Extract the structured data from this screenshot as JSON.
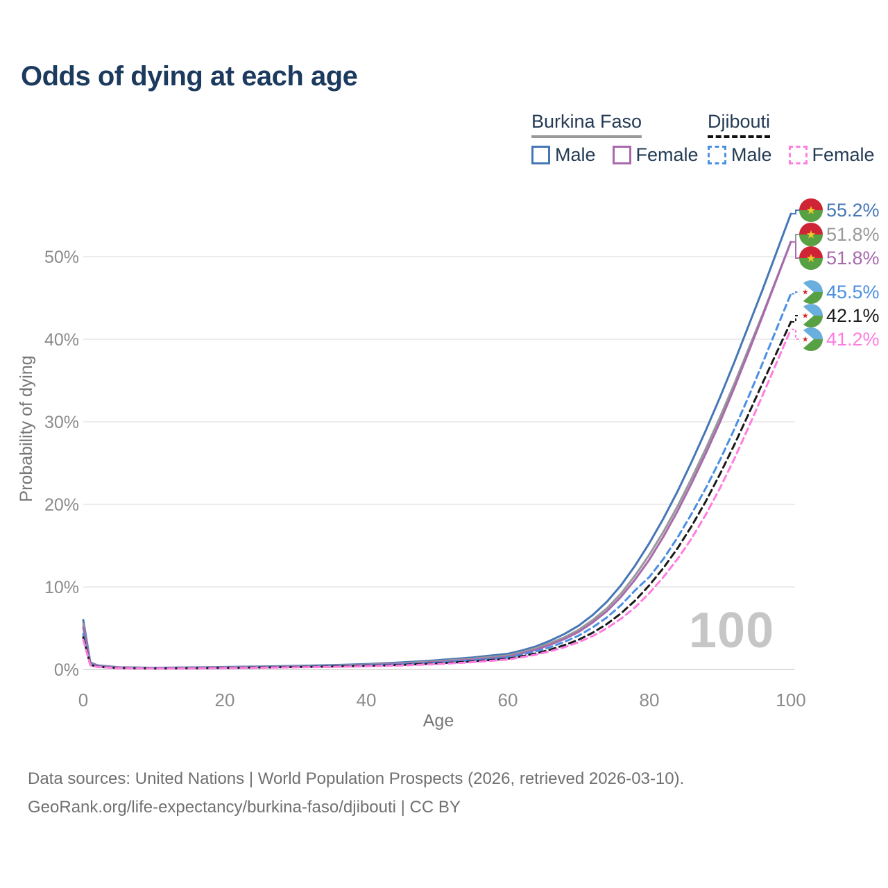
{
  "title": "Odds of dying at each age",
  "watermark_age": "100",
  "legend": {
    "groups": [
      {
        "label": "Burkina Faso",
        "line_style": "solid",
        "line_color": "#999999",
        "items": [
          {
            "label": "Male",
            "color": "#4576b5",
            "dash": false
          },
          {
            "label": "Female",
            "color": "#a869ad",
            "dash": false
          }
        ]
      },
      {
        "label": "Djibouti",
        "line_style": "dashed",
        "line_color": "#111111",
        "items": [
          {
            "label": "Male",
            "color": "#4a8fe2",
            "dash": true
          },
          {
            "label": "Female",
            "color": "#ff7ce0",
            "dash": true
          }
        ]
      }
    ]
  },
  "footer": {
    "line1": "Data sources: United Nations | World Population Prospects (2026, retrieved 2026-03-10).",
    "line2": "GeoRank.org/life-expectancy/burkina-faso/djibouti | CC BY"
  },
  "flags": {
    "burkina_faso": {
      "red": "#cf2436",
      "green": "#58a044",
      "star": "#f5c829"
    },
    "djibouti": {
      "blue": "#6aaede",
      "green": "#58a044",
      "triangle": "#ffffff",
      "star": "#d7282f"
    }
  },
  "chart_data": {
    "type": "line",
    "title": "Odds of dying at each age",
    "xlabel": "Age",
    "ylabel": "Probability of dying",
    "xlim": [
      0,
      100
    ],
    "ylim": [
      0,
      57
    ],
    "x_ticks": [
      0,
      20,
      40,
      60,
      80,
      100
    ],
    "y_ticks_pct": [
      0,
      10,
      20,
      30,
      40,
      50
    ],
    "grid": "horizontal",
    "legend_position": "top-right",
    "age_marker": "100",
    "ages": [
      0,
      1,
      2,
      5,
      10,
      15,
      20,
      25,
      30,
      35,
      40,
      45,
      50,
      55,
      60,
      62,
      64,
      66,
      68,
      70,
      72,
      74,
      76,
      78,
      80,
      82,
      84,
      86,
      88,
      90,
      92,
      94,
      96,
      98,
      100
    ],
    "series": [
      {
        "name": "Burkina Faso — Male",
        "country": "burkina-faso",
        "sex": "male",
        "color": "#4576b5",
        "dash": false,
        "end_label": "55.2%",
        "values": [
          6.0,
          0.85,
          0.5,
          0.28,
          0.2,
          0.24,
          0.3,
          0.36,
          0.43,
          0.52,
          0.65,
          0.85,
          1.12,
          1.45,
          1.9,
          2.3,
          2.8,
          3.5,
          4.3,
          5.3,
          6.6,
          8.2,
          10.2,
          12.6,
          15.3,
          18.3,
          21.6,
          25.2,
          29.0,
          33.0,
          37.2,
          41.6,
          46.0,
          50.6,
          55.2
        ]
      },
      {
        "name": "Burkina Faso — Both sexes",
        "country": "burkina-faso",
        "sex": "both",
        "color": "#999999",
        "dash": false,
        "end_label": "51.8%",
        "values": [
          5.5,
          0.78,
          0.46,
          0.26,
          0.18,
          0.21,
          0.27,
          0.32,
          0.38,
          0.46,
          0.58,
          0.76,
          1.0,
          1.3,
          1.7,
          2.1,
          2.6,
          3.2,
          3.9,
          4.8,
          6.0,
          7.4,
          9.2,
          11.4,
          13.9,
          16.7,
          19.8,
          23.2,
          26.8,
          30.6,
          34.6,
          38.8,
          43.0,
          47.4,
          51.8
        ]
      },
      {
        "name": "Burkina Faso — Female",
        "country": "burkina-faso",
        "sex": "female",
        "color": "#a869ad",
        "dash": false,
        "end_label": "51.8%",
        "values": [
          5.1,
          0.7,
          0.42,
          0.24,
          0.16,
          0.19,
          0.24,
          0.28,
          0.34,
          0.41,
          0.52,
          0.68,
          0.9,
          1.18,
          1.55,
          1.95,
          2.4,
          3.0,
          3.7,
          4.55,
          5.7,
          7.05,
          8.8,
          10.9,
          13.3,
          16.1,
          19.2,
          22.6,
          26.2,
          30.0,
          34.1,
          38.4,
          42.8,
          47.3,
          51.8
        ]
      },
      {
        "name": "Djibouti — Male",
        "country": "djibouti",
        "sex": "male",
        "color": "#4a8fe2",
        "dash": true,
        "end_label": "45.5%",
        "values": [
          4.3,
          0.6,
          0.36,
          0.2,
          0.14,
          0.17,
          0.22,
          0.27,
          0.32,
          0.39,
          0.48,
          0.62,
          0.82,
          1.08,
          1.45,
          1.8,
          2.2,
          2.7,
          3.35,
          4.1,
          5.1,
          6.3,
          7.8,
          9.6,
          11.2,
          13.4,
          16.0,
          18.9,
          22.0,
          25.4,
          29.1,
          33.0,
          37.1,
          41.3,
          45.5
        ]
      },
      {
        "name": "Djibouti — Both sexes",
        "country": "djibouti",
        "sex": "both",
        "color": "#1a1a1a",
        "dash": true,
        "end_label": "42.1%",
        "values": [
          3.9,
          0.55,
          0.33,
          0.18,
          0.12,
          0.15,
          0.19,
          0.24,
          0.29,
          0.35,
          0.43,
          0.55,
          0.73,
          0.97,
          1.3,
          1.6,
          1.95,
          2.4,
          2.95,
          3.6,
          4.45,
          5.5,
          6.8,
          8.35,
          10.2,
          12.3,
          14.7,
          17.4,
          20.4,
          23.7,
          27.2,
          30.9,
          34.7,
          38.4,
          42.1
        ]
      },
      {
        "name": "Djibouti — Female",
        "country": "djibouti",
        "sex": "female",
        "color": "#ff7ce0",
        "dash": true,
        "end_label": "41.2%",
        "values": [
          3.6,
          0.5,
          0.3,
          0.16,
          0.11,
          0.13,
          0.17,
          0.21,
          0.26,
          0.31,
          0.38,
          0.49,
          0.65,
          0.88,
          1.2,
          1.48,
          1.8,
          2.2,
          2.7,
          3.3,
          4.05,
          5.0,
          6.15,
          7.55,
          9.25,
          11.2,
          13.4,
          15.9,
          18.8,
          22.0,
          25.5,
          29.3,
          33.2,
          37.2,
          41.2
        ]
      }
    ]
  }
}
